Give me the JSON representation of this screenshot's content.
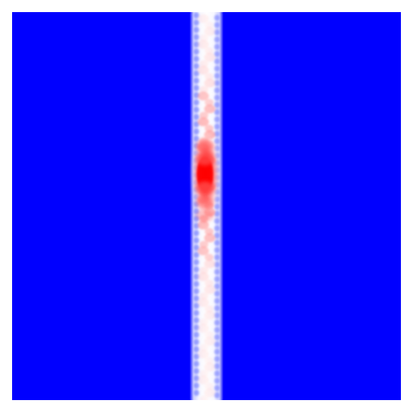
{
  "image": {
    "kind": "heatmap-field",
    "colors": {
      "background": "#0000ff",
      "cold": "#0000ff",
      "neutral": "#ffffff",
      "hot": "#ff0000",
      "page": "#ffffff"
    }
  }
}
